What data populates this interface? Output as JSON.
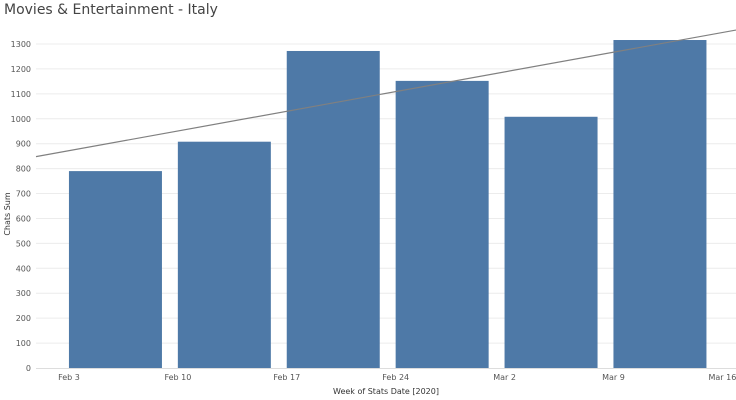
{
  "chart_data": {
    "type": "bar",
    "title": "Movies & Entertainment - Italy",
    "xlabel": "Week of Stats Date [2020]",
    "ylabel": "Chats Sum",
    "x_tick_labels": [
      "Feb 3",
      "Feb 10",
      "Feb 17",
      "Feb 24",
      "Mar 2",
      "Mar 9",
      "Mar 16"
    ],
    "categories": [
      "Feb 3",
      "Feb 10",
      "Feb 17",
      "Feb 24",
      "Mar 2",
      "Mar 9"
    ],
    "series": [
      {
        "values": [
          790,
          908,
          1272,
          1152,
          1008,
          1316
        ]
      }
    ],
    "trend_line": {
      "start_value": 848,
      "end_value": 1356
    },
    "ylim": [
      0,
      1350
    ],
    "y_ticks": [
      0,
      100,
      200,
      300,
      400,
      500,
      600,
      700,
      800,
      900,
      1000,
      1100,
      1200,
      1300
    ],
    "grid": true,
    "legend": "none",
    "colors": {
      "bar": "#4e79a7",
      "trend": "#808080",
      "grid": "#ececec",
      "tick_text": "#555555"
    }
  }
}
